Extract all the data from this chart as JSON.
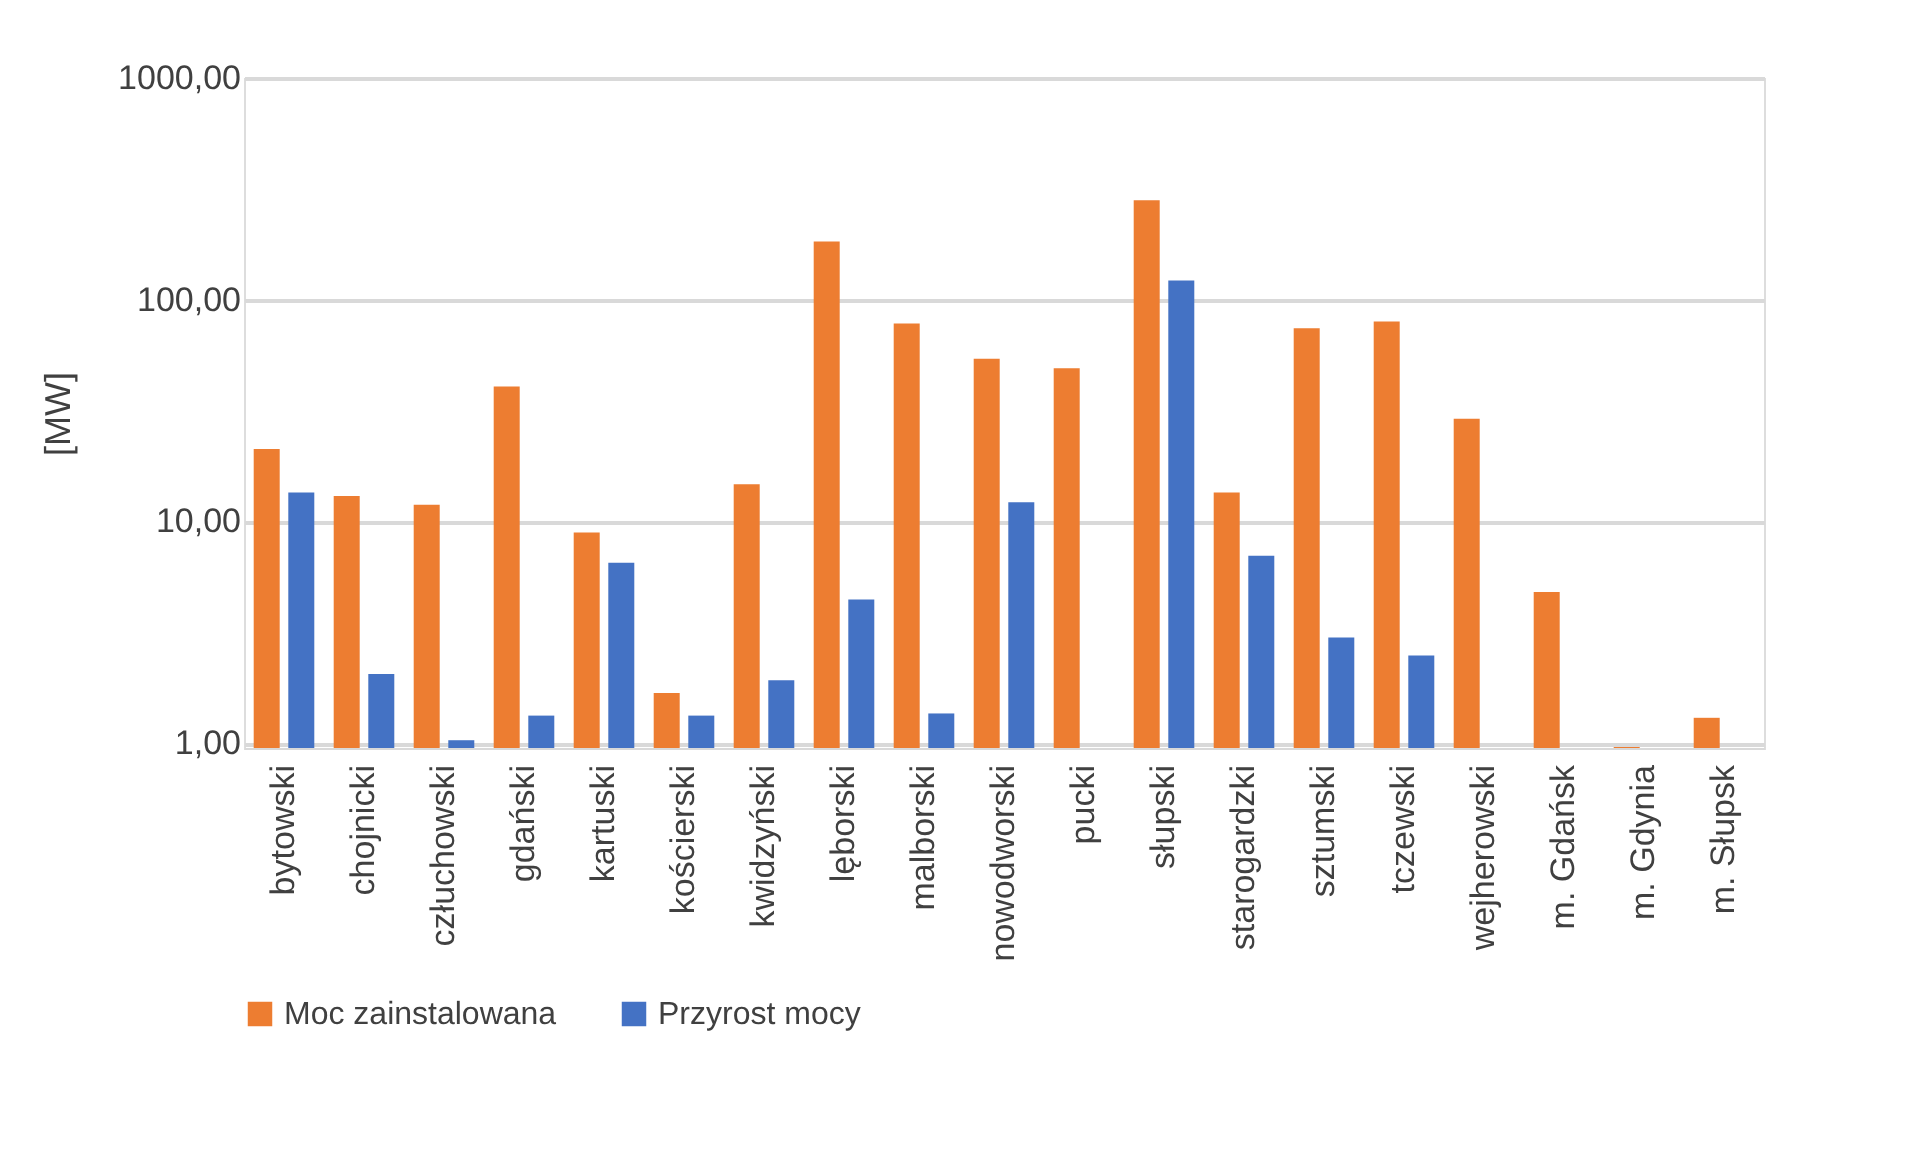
{
  "chart_data": {
    "type": "bar",
    "ylabel": "[MW]",
    "log": true,
    "categories": [
      "bytowski",
      "chojnicki",
      "człuchowski",
      "gdański",
      "kartuski",
      "kościerski",
      "kwidzyński",
      "lęborski",
      "malborski",
      "nowodworski",
      "pucki",
      "słupski",
      "starogardzki",
      "sztumski",
      "tczewski",
      "wejherowski",
      "m. Gdańsk",
      "m. Gdynia",
      "m. Słupsk"
    ],
    "series": [
      {
        "name": "Moc zainstalowana",
        "color": "#ed7d31",
        "values": [
          21.2,
          13.0,
          11.9,
          40.6,
          8.9,
          1.68,
          14.7,
          183,
          78,
          54.2,
          49,
          281,
          13.5,
          74.3,
          79.7,
          29,
          4.8,
          0.96,
          1.3
        ]
      },
      {
        "name": "Przyrost mocy",
        "color": "#4472c4",
        "values": [
          13.5,
          2.05,
          1.03,
          1.33,
          6.5,
          1.33,
          1.92,
          4.44,
          1.36,
          12.2,
          null,
          122,
          7.0,
          2.99,
          2.48,
          null,
          null,
          null,
          null
        ]
      }
    ],
    "ylim": [
      0.95,
      1000
    ],
    "yticks": [
      {
        "value": 1,
        "label": "1,00"
      },
      {
        "value": 10,
        "label": "10,00"
      },
      {
        "value": 100,
        "label": "100,00"
      },
      {
        "value": 1000,
        "label": "1000,00"
      }
    ],
    "grid": "y",
    "legend": "bottom"
  }
}
